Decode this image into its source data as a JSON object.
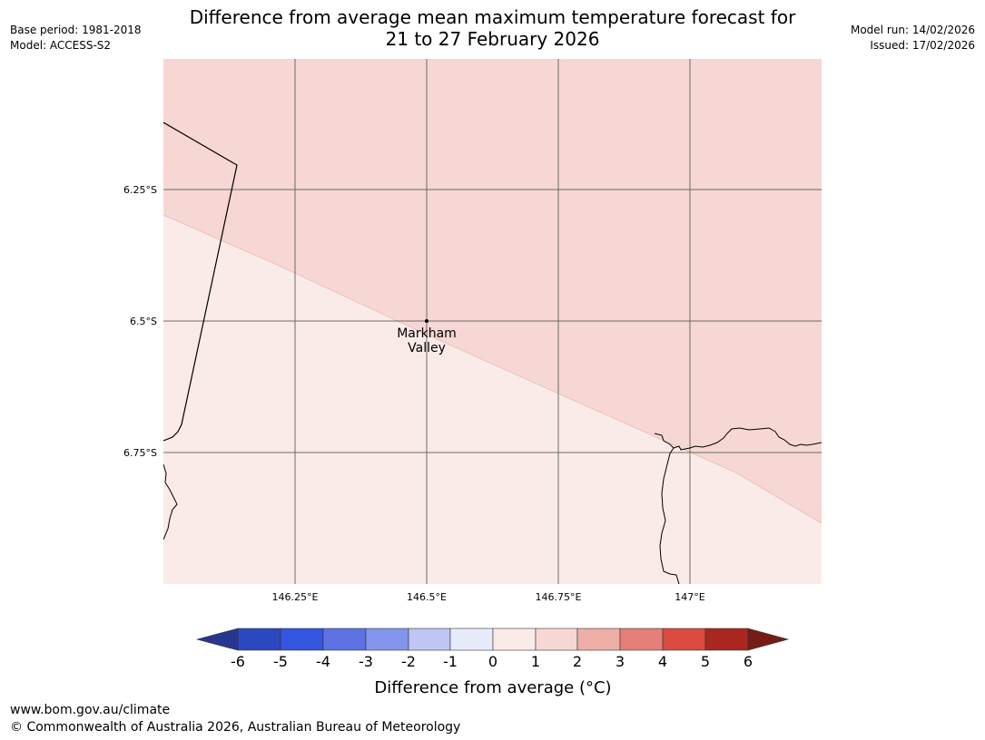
{
  "header": {
    "base_period": "Base period: 1981-2018",
    "model": "Model: ACCESS-S2",
    "model_run": "Model run: 14/02/2026",
    "issued": "Issued: 17/02/2026",
    "title_line1": "Difference from average mean maximum temperature forecast for",
    "title_line2": "21 to 27 February 2026"
  },
  "map": {
    "lat_labels": [
      "6.25°S",
      "6.5°S",
      "6.75°S"
    ],
    "lon_labels": [
      "146.25°E",
      "146.5°E",
      "146.75°E",
      "147°E"
    ],
    "place": {
      "name_line1": "Markham",
      "name_line2": "Valley"
    },
    "colors": {
      "fill_0_1": "#fbebe8",
      "fill_1_2": "#f6d7d4",
      "coast": "#000000",
      "grid": "#555555"
    }
  },
  "colorbar": {
    "ticks": [
      "-6",
      "-5",
      "-4",
      "-3",
      "-2",
      "-1",
      "0",
      "1",
      "2",
      "3",
      "4",
      "5",
      "6"
    ],
    "label": "Difference from average (°C)",
    "colors": [
      "#27368e",
      "#2c48c0",
      "#3456e0",
      "#5e72e4",
      "#8395ec",
      "#bfc6f4",
      "#e8ebfc",
      "#fbebe8",
      "#f6d7d4",
      "#eeaea8",
      "#e57f78",
      "#dc4b40",
      "#aa2620",
      "#771b18"
    ]
  },
  "footer": {
    "url": "www.bom.gov.au/climate",
    "copyright": "© Commonwealth of Australia 2026, Australian Bureau of Meteorology"
  }
}
